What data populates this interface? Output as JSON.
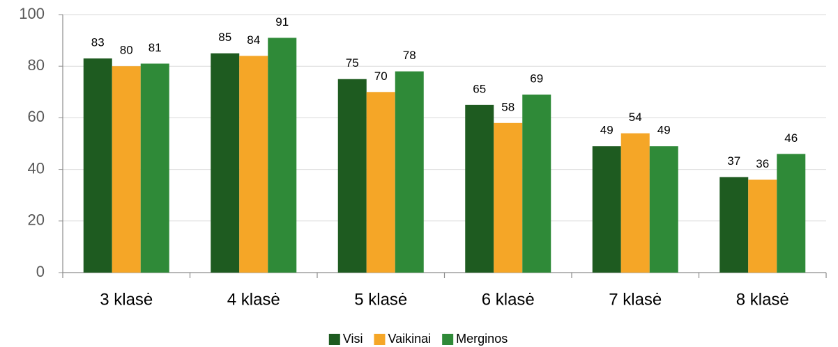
{
  "chart_data": {
    "type": "bar",
    "categories": [
      "3 klasė",
      "4 klasė",
      "5 klasė",
      "6 klasė",
      "7 klasė",
      "8 klasė"
    ],
    "series": [
      {
        "name": "Visi",
        "color": "#1e5b20",
        "values": [
          83,
          85,
          75,
          65,
          49,
          37
        ]
      },
      {
        "name": "Vaikinai",
        "color": "#f5a627",
        "values": [
          80,
          84,
          70,
          58,
          54,
          36
        ]
      },
      {
        "name": "Merginos",
        "color": "#2f8a38",
        "values": [
          81,
          91,
          78,
          69,
          49,
          46
        ]
      }
    ],
    "ylim": [
      0,
      100
    ],
    "yticks": [
      0,
      20,
      40,
      60,
      80,
      100
    ],
    "grid": true,
    "legend": "bottom"
  }
}
